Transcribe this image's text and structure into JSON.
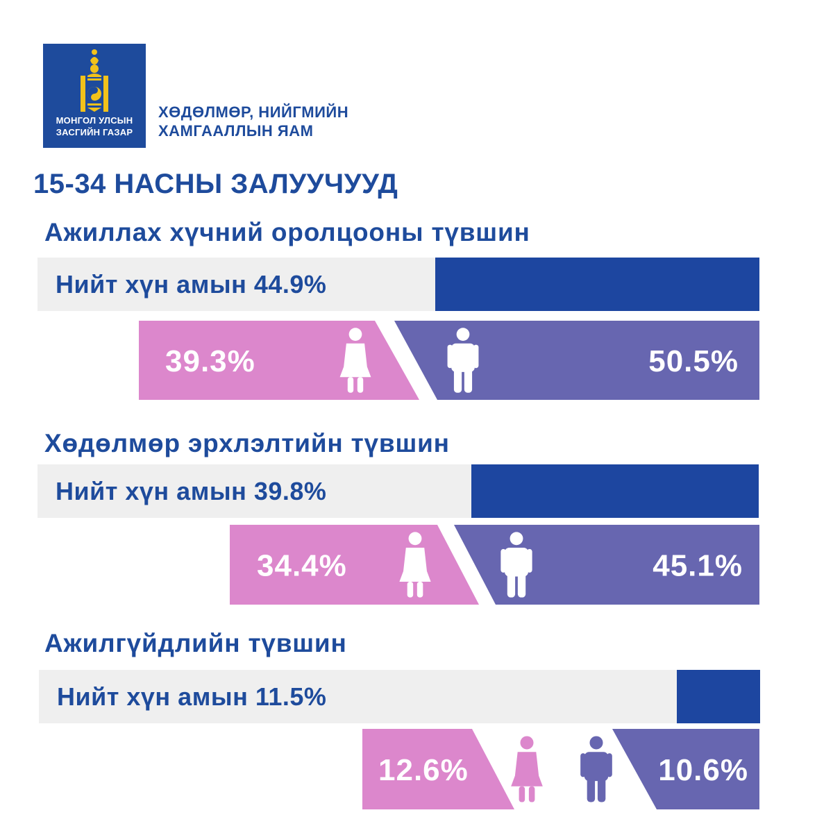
{
  "header": {
    "logo_line1": "МОНГОЛ УЛСЫН",
    "logo_line2": "ЗАСГИЙН ГАЗАР",
    "ministry_line1": "ХӨДӨЛМӨР, НИЙГМИЙН",
    "ministry_line2": "ХАМГААЛЛЫН ЯАМ"
  },
  "title": "15-34 НАСНЫ ЗАЛУУЧУУД",
  "colors": {
    "brand_blue": "#1e4b9c",
    "total_fill": "#1d46a0",
    "total_track": "#efefef",
    "female": "#dc87cc",
    "male": "#6766b0"
  },
  "chart_data": [
    {
      "type": "bar",
      "title": "Ажиллах хүчний оролцооны түвшин",
      "total_label": "Нийт хүн амын 44.9%",
      "total": 44.9,
      "series": [
        {
          "name": "эмэгтэй",
          "value": 39.3,
          "label": "39.3%",
          "icon": "female-icon"
        },
        {
          "name": "эрэгтэй",
          "value": 50.5,
          "label": "50.5%",
          "icon": "male-icon"
        }
      ]
    },
    {
      "type": "bar",
      "title": "Хөдөлмөр эрхлэлтийн түвшин",
      "total_label": "Нийт хүн амын 39.8%",
      "total": 39.8,
      "series": [
        {
          "name": "эмэгтэй",
          "value": 34.4,
          "label": "34.4%",
          "icon": "female-icon"
        },
        {
          "name": "эрэгтэй",
          "value": 45.1,
          "label": "45.1%",
          "icon": "male-icon"
        }
      ]
    },
    {
      "type": "bar",
      "title": "Ажилгүйдлийн түвшин",
      "total_label": "Нийт хүн амын 11.5%",
      "total": 11.5,
      "series": [
        {
          "name": "эмэгтэй",
          "value": 12.6,
          "label": "12.6%",
          "icon": "female-icon"
        },
        {
          "name": "эрэгтэй",
          "value": 10.6,
          "label": "10.6%",
          "icon": "male-icon"
        }
      ]
    }
  ]
}
